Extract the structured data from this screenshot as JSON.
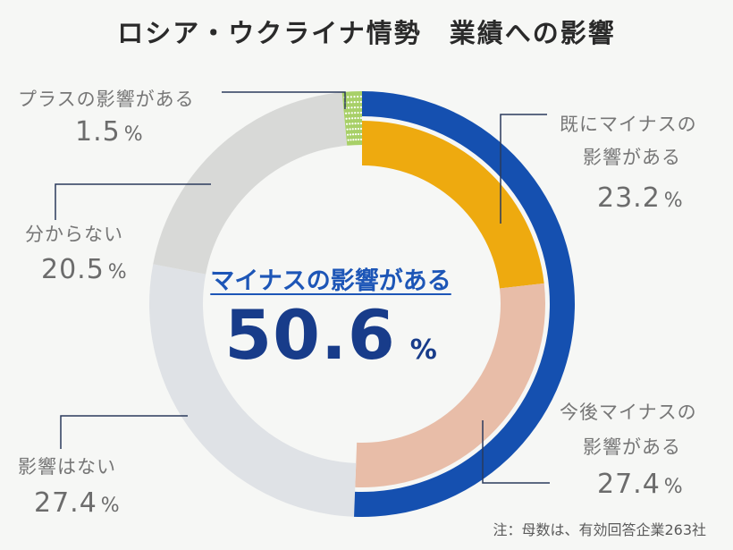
{
  "chart_data": {
    "type": "pie",
    "title": "ロシア・ウクライナ情勢　業績への影響",
    "segments": [
      {
        "label_lines": [
          "既にマイナスの",
          "影響がある"
        ],
        "value": 23.2,
        "display": "23.2",
        "unit": "%",
        "color": "#eeaa0f",
        "ring": "inner"
      },
      {
        "label_lines": [
          "今後マイナスの",
          "影響がある"
        ],
        "value": 27.4,
        "display": "27.4",
        "unit": "%",
        "color": "#e8bda8",
        "ring": "inner"
      },
      {
        "label_lines": [
          "影響はない"
        ],
        "value": 27.4,
        "display": "27.4",
        "unit": "%",
        "color": "#dfe2e6",
        "ring": "outer"
      },
      {
        "label_lines": [
          "分からない"
        ],
        "value": 20.5,
        "display": "20.5",
        "unit": "%",
        "color": "#d8d9d7",
        "ring": "outer"
      },
      {
        "label_lines": [
          "プラスの影響がある"
        ],
        "value": 1.5,
        "display": "1.5",
        "unit": "%",
        "color": "#a8d068",
        "ring": "outer"
      }
    ],
    "highlight": {
      "label": "マイナスの影響がある",
      "value": "50.6",
      "unit": "%",
      "color": "#1550b0"
    },
    "note": "注：母数は、有効回答企業263社"
  }
}
